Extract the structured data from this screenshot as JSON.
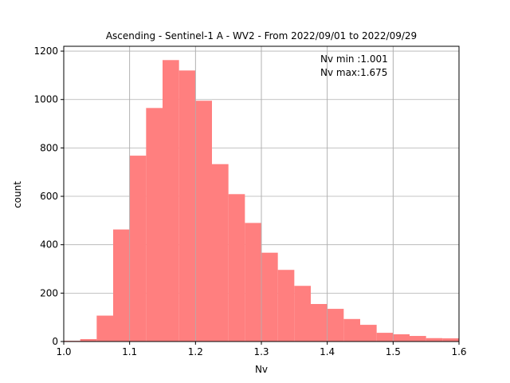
{
  "chart_data": {
    "type": "bar",
    "title": "Ascending - Sentinel-1 A - WV2 - From 2022/09/01 to 2022/09/29",
    "xlabel": "Nv",
    "ylabel": "count",
    "xlim": [
      1.0,
      1.6
    ],
    "ylim": [
      0,
      1220
    ],
    "xticks": [
      "1.0",
      "1.1",
      "1.2",
      "1.3",
      "1.4",
      "1.5",
      "1.6"
    ],
    "yticks": [
      "0",
      "200",
      "400",
      "600",
      "800",
      "1000",
      "1200"
    ],
    "grid": true,
    "bar_color": "#ff7f7f",
    "bin_edges": [
      1.0,
      1.025,
      1.05,
      1.075,
      1.1,
      1.125,
      1.15,
      1.175,
      1.2,
      1.225,
      1.25,
      1.275,
      1.3,
      1.325,
      1.35,
      1.375,
      1.4,
      1.425,
      1.45,
      1.475,
      1.5,
      1.525,
      1.55,
      1.575,
      1.6
    ],
    "values": [
      3,
      10,
      107,
      463,
      768,
      965,
      1163,
      1120,
      995,
      733,
      609,
      490,
      367,
      296,
      230,
      155,
      135,
      93,
      69,
      36,
      30,
      23,
      14,
      13
    ],
    "annotations": [
      "Nv min :1.001",
      "Nv max:1.675"
    ]
  }
}
